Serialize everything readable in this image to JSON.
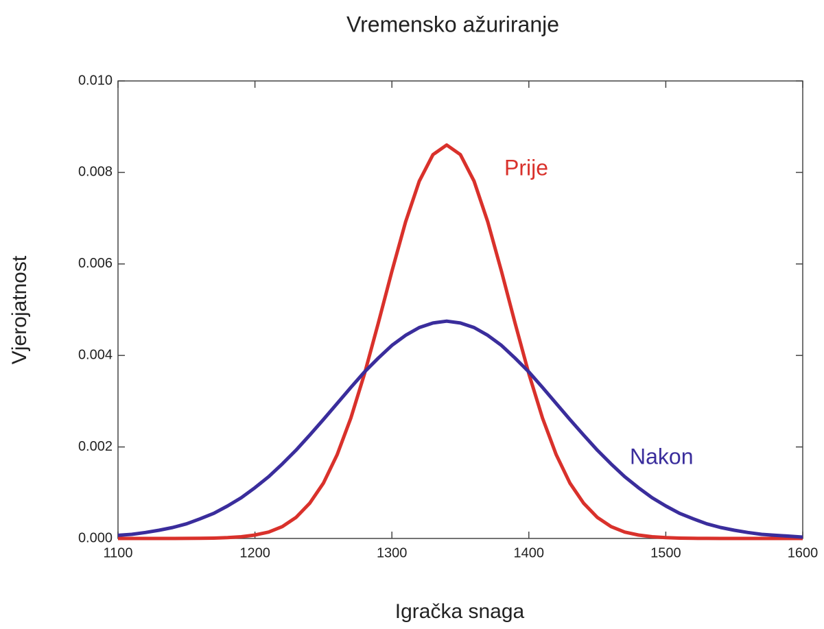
{
  "chart_data": {
    "type": "line",
    "title": "Vremensko ažuriranje",
    "xlabel": "Igračka snaga",
    "ylabel": "Vjerojatnost",
    "x": [
      1100,
      1110,
      1120,
      1130,
      1140,
      1150,
      1160,
      1170,
      1180,
      1190,
      1200,
      1210,
      1220,
      1230,
      1240,
      1250,
      1260,
      1270,
      1280,
      1290,
      1300,
      1310,
      1320,
      1330,
      1340,
      1350,
      1360,
      1370,
      1380,
      1390,
      1400,
      1410,
      1420,
      1430,
      1440,
      1450,
      1460,
      1470,
      1480,
      1490,
      1500,
      1510,
      1520,
      1530,
      1540,
      1550,
      1560,
      1570,
      1580,
      1590,
      1600
    ],
    "series": [
      {
        "name": "Prije",
        "color": "#d9312b",
        "values": [
          0,
          0,
          0,
          0,
          0,
          1e-06,
          3e-06,
          8e-06,
          1.8e-05,
          3.7e-05,
          7.5e-05,
          0.00014,
          0.00026,
          0.00046,
          0.00077,
          0.00121,
          0.00183,
          0.00263,
          0.0036,
          0.0047,
          0.00584,
          0.00692,
          0.00781,
          0.00839,
          0.0086,
          0.00839,
          0.00781,
          0.00692,
          0.00584,
          0.0047,
          0.0036,
          0.00263,
          0.00183,
          0.00121,
          0.00077,
          0.00046,
          0.00026,
          0.00014,
          7.5e-05,
          3.7e-05,
          1.8e-05,
          8e-06,
          3e-06,
          1e-06,
          0,
          0,
          0,
          0,
          0,
          0,
          0
        ]
      },
      {
        "name": "Nakon",
        "color": "#3a2d9c",
        "values": [
          7e-05,
          9e-05,
          0.00013,
          0.00018,
          0.00024,
          0.00032,
          0.00043,
          0.00055,
          0.00071,
          0.00089,
          0.00111,
          0.00135,
          0.00163,
          0.00193,
          0.00226,
          0.0026,
          0.00295,
          0.0033,
          0.00364,
          0.00394,
          0.00422,
          0.00444,
          0.00461,
          0.00471,
          0.00475,
          0.00471,
          0.00461,
          0.00444,
          0.00422,
          0.00394,
          0.00364,
          0.0033,
          0.00295,
          0.0026,
          0.00226,
          0.00193,
          0.00163,
          0.00135,
          0.00111,
          0.00089,
          0.00071,
          0.00055,
          0.00043,
          0.00032,
          0.00024,
          0.00018,
          0.00013,
          9e-05,
          7e-05,
          5e-05,
          3e-05
        ]
      }
    ],
    "xlim": [
      1100,
      1600
    ],
    "xticks": [
      1100,
      1200,
      1300,
      1400,
      1500,
      1600
    ],
    "ylim": [
      0,
      0.01
    ],
    "yticks": [
      {
        "value": 0,
        "label": "0.000"
      },
      {
        "value": 0.002,
        "label": "0.002"
      },
      {
        "value": 0.004,
        "label": "0.004"
      },
      {
        "value": 0.006,
        "label": "0.006"
      },
      {
        "value": 0.008,
        "label": "0.008"
      },
      {
        "value": 0.01,
        "label": "0.010"
      }
    ],
    "grid": false
  }
}
